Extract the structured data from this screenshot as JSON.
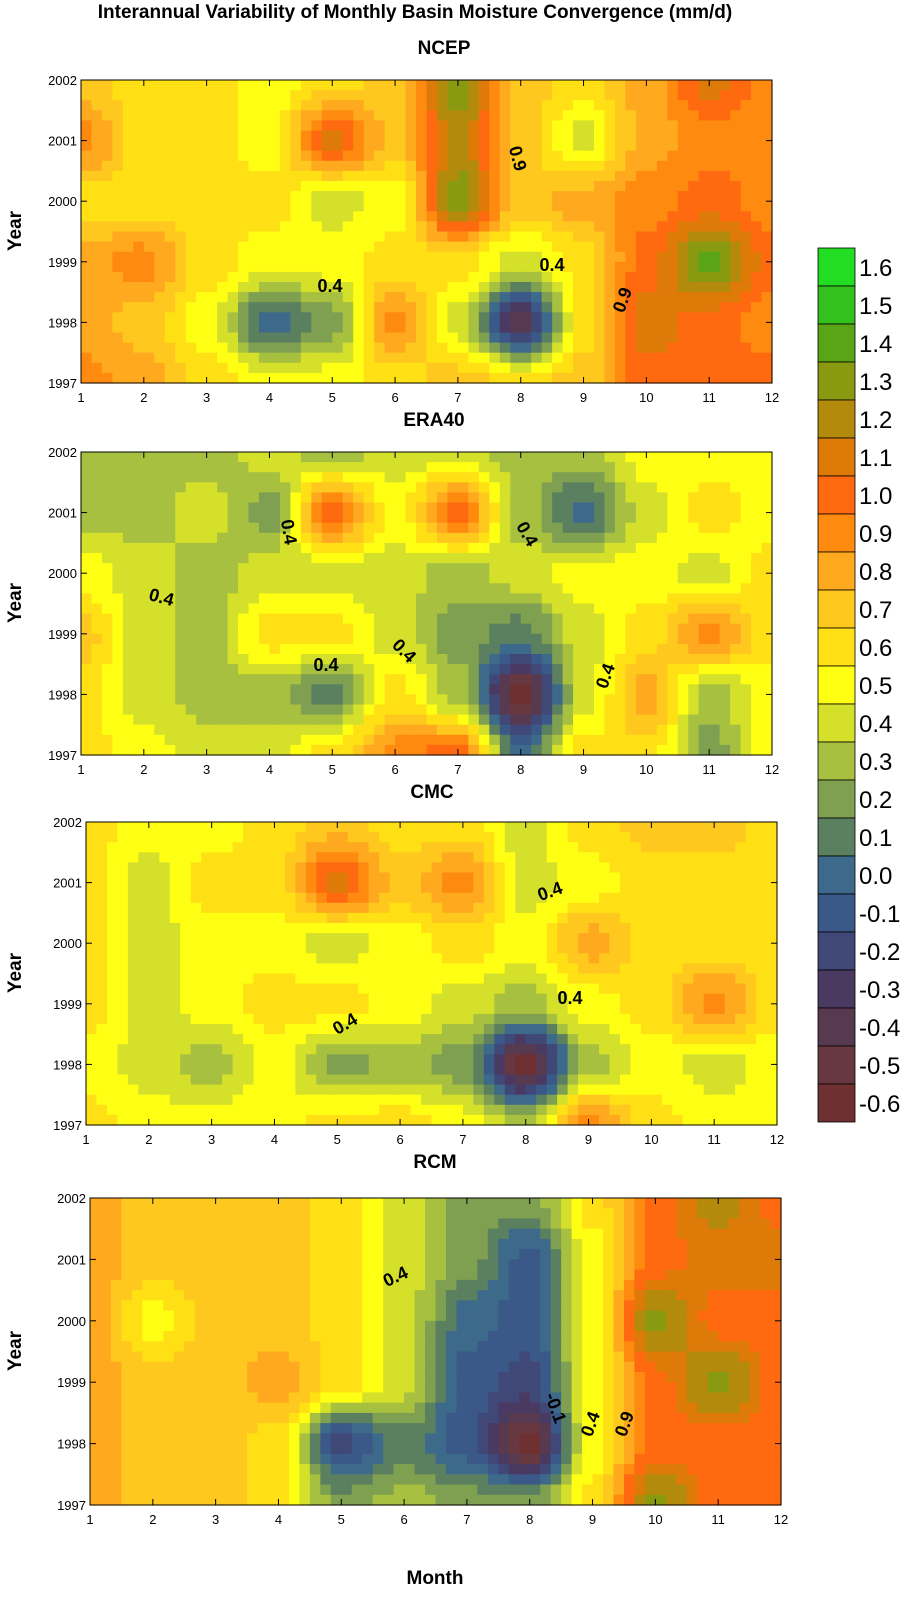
{
  "title": "Interannual Variability of Monthly Basin Moisture Convergence (mm/d)",
  "x_axis_label": "Month",
  "y_axis_label": "Year",
  "colorbar": {
    "levels": [
      "1.6",
      "1.5",
      "1.4",
      "1.3",
      "1.2",
      "1.1",
      "1.0",
      "0.9",
      "0.8",
      "0.7",
      "0.6",
      "0.5",
      "0.4",
      "0.3",
      "0.2",
      "0.1",
      "0.0",
      "-0.1",
      "-0.2",
      "-0.3",
      "-0.4",
      "-0.5",
      "-0.6"
    ],
    "colors": [
      "#22dd22",
      "#33c11e",
      "#5aa516",
      "#8a9a10",
      "#b38a0c",
      "#dd7a08",
      "#ff6a10",
      "#ff8a10",
      "#ffaa1e",
      "#ffc81e",
      "#ffe014",
      "#ffff14",
      "#d4e02a",
      "#a8c040",
      "#7ea050",
      "#5a8060",
      "#3d6a8a",
      "#3a5888",
      "#404878",
      "#4a3a62",
      "#583a50",
      "#683840",
      "#6e3030"
    ]
  },
  "chart_data": [
    {
      "type": "heatmap",
      "title": "NCEP",
      "xlabel": "",
      "ylabel": "Year",
      "x_ticks": [
        "1",
        "2",
        "3",
        "4",
        "5",
        "6",
        "7",
        "8",
        "9",
        "10",
        "11",
        "12"
      ],
      "y_ticks": [
        "1997",
        "1998",
        "1999",
        "2000",
        "2001",
        "2002"
      ],
      "xlim": [
        1,
        12
      ],
      "ylim": [
        1997,
        2002
      ],
      "contour_labels": [
        "0.4",
        "0.4",
        "0.9",
        "0.9"
      ],
      "z": [
        [
          0.9,
          0.8,
          0.6,
          0.5,
          0.5,
          0.6,
          0.7,
          0.6,
          0.7,
          1.0,
          1.0,
          1.0
        ],
        [
          0.8,
          0.7,
          0.5,
          0.0,
          0.2,
          0.9,
          0.4,
          -0.4,
          0.6,
          1.1,
          1.0,
          0.9
        ],
        [
          0.8,
          0.9,
          0.6,
          0.5,
          0.5,
          0.6,
          0.6,
          0.4,
          0.6,
          1.0,
          1.4,
          1.0
        ],
        [
          0.6,
          0.6,
          0.6,
          0.6,
          0.4,
          0.5,
          1.3,
          0.7,
          0.8,
          0.9,
          1.0,
          0.9
        ],
        [
          0.9,
          0.6,
          0.6,
          0.5,
          1.1,
          0.7,
          1.2,
          0.7,
          0.4,
          0.8,
          0.9,
          0.9
        ],
        [
          0.7,
          0.6,
          0.6,
          0.5,
          0.6,
          0.7,
          1.3,
          0.7,
          0.6,
          0.8,
          1.1,
          0.9
        ]
      ]
    },
    {
      "type": "heatmap",
      "title": "ERA40",
      "xlabel": "",
      "ylabel": "Year",
      "x_ticks": [
        "1",
        "2",
        "3",
        "4",
        "5",
        "6",
        "7",
        "8",
        "9",
        "10",
        "11",
        "12"
      ],
      "y_ticks": [
        "1997",
        "1998",
        "1999",
        "2000",
        "2001",
        "2002"
      ],
      "xlim": [
        1,
        12
      ],
      "ylim": [
        1997,
        2002
      ],
      "contour_labels": [
        "0.4",
        "0.4",
        "0.4",
        "0.4",
        "0.4",
        "0.4"
      ],
      "z": [
        [
          0.6,
          0.5,
          0.4,
          0.4,
          0.6,
          0.9,
          1.0,
          0.0,
          0.6,
          0.6,
          0.2,
          0.5
        ],
        [
          0.6,
          0.4,
          0.3,
          0.3,
          0.1,
          0.6,
          0.3,
          -0.6,
          0.4,
          0.8,
          0.3,
          0.5
        ],
        [
          0.7,
          0.4,
          0.3,
          0.6,
          0.6,
          0.4,
          0.2,
          0.1,
          0.4,
          0.6,
          0.9,
          0.6
        ],
        [
          0.5,
          0.4,
          0.3,
          0.4,
          0.4,
          0.4,
          0.3,
          0.4,
          0.5,
          0.5,
          0.4,
          0.6
        ],
        [
          0.3,
          0.3,
          0.4,
          0.2,
          1.0,
          0.5,
          1.0,
          0.3,
          0.0,
          0.4,
          0.6,
          0.5
        ],
        [
          0.3,
          0.3,
          0.3,
          0.4,
          0.3,
          0.4,
          0.4,
          0.3,
          0.3,
          0.5,
          0.5,
          0.5
        ]
      ]
    },
    {
      "type": "heatmap",
      "title": "CMC",
      "xlabel": "",
      "ylabel": "Year",
      "x_ticks": [
        "1",
        "2",
        "3",
        "4",
        "5",
        "6",
        "7",
        "8",
        "9",
        "10",
        "11",
        "12"
      ],
      "y_ticks": [
        "1997",
        "1998",
        "1999",
        "2000",
        "2001",
        "2002"
      ],
      "xlim": [
        1,
        12
      ],
      "ylim": [
        1997,
        2002
      ],
      "contour_labels": [
        "0.4",
        "0.4",
        "0.4"
      ],
      "z": [
        [
          0.6,
          0.5,
          0.5,
          0.5,
          0.6,
          0.6,
          0.5,
          0.3,
          0.9,
          0.6,
          0.5,
          0.5
        ],
        [
          0.5,
          0.4,
          0.3,
          0.5,
          0.2,
          0.3,
          0.2,
          -0.6,
          0.3,
          0.5,
          0.4,
          0.5
        ],
        [
          0.6,
          0.4,
          0.5,
          0.6,
          0.6,
          0.5,
          0.4,
          0.3,
          0.5,
          0.6,
          0.9,
          0.6
        ],
        [
          0.6,
          0.4,
          0.5,
          0.5,
          0.4,
          0.5,
          0.6,
          0.5,
          0.8,
          0.6,
          0.6,
          0.6
        ],
        [
          0.6,
          0.4,
          0.6,
          0.6,
          1.1,
          0.7,
          0.9,
          0.4,
          0.5,
          0.6,
          0.6,
          0.6
        ],
        [
          0.6,
          0.5,
          0.5,
          0.6,
          0.7,
          0.6,
          0.6,
          0.4,
          0.6,
          0.7,
          0.7,
          0.6
        ]
      ]
    },
    {
      "type": "heatmap",
      "title": "RCM",
      "xlabel": "Month",
      "ylabel": "Year",
      "x_ticks": [
        "1",
        "2",
        "3",
        "4",
        "5",
        "6",
        "7",
        "8",
        "9",
        "10",
        "11",
        "12"
      ],
      "y_ticks": [
        "1997",
        "1998",
        "1999",
        "2000",
        "2001",
        "2002"
      ],
      "xlim": [
        1,
        12
      ],
      "ylim": [
        1997,
        2002
      ],
      "contour_labels": [
        "0.4",
        "-0.1",
        "0.4",
        "0.9"
      ],
      "z": [
        [
          0.8,
          0.7,
          0.7,
          0.6,
          0.2,
          0.3,
          0.2,
          0.2,
          0.6,
          1.3,
          1.0,
          1.0
        ],
        [
          0.8,
          0.7,
          0.7,
          0.6,
          -0.2,
          0.1,
          -0.1,
          -0.6,
          0.5,
          1.0,
          1.0,
          1.0
        ],
        [
          0.8,
          0.7,
          0.7,
          0.8,
          0.6,
          0.4,
          -0.1,
          -0.2,
          0.5,
          1.0,
          1.3,
          1.0
        ],
        [
          0.8,
          0.5,
          0.7,
          0.7,
          0.6,
          0.4,
          0.0,
          -0.1,
          0.5,
          1.3,
          1.0,
          1.0
        ],
        [
          0.8,
          0.7,
          0.7,
          0.7,
          0.6,
          0.4,
          0.2,
          -0.1,
          0.5,
          1.0,
          1.1,
          1.1
        ],
        [
          0.8,
          0.7,
          0.7,
          0.7,
          0.6,
          0.4,
          0.2,
          0.2,
          0.6,
          1.0,
          1.2,
          1.0
        ]
      ]
    }
  ]
}
